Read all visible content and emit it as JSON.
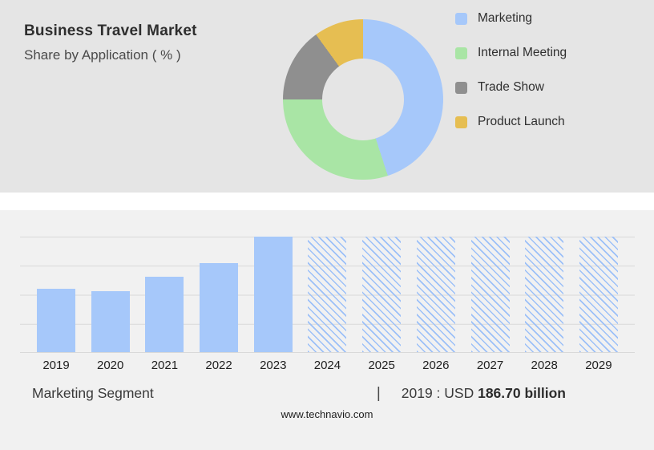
{
  "header": {
    "title": "Business Travel Market",
    "subtitle": "Share by Application ( % )"
  },
  "chart_data": [
    {
      "type": "pie",
      "title": "Business Travel Market - Share by Application (%)",
      "labels": [
        "Marketing",
        "Internal Meeting",
        "Trade Show",
        "Product Launch"
      ],
      "values": [
        45,
        30,
        15,
        10
      ],
      "colors": [
        "#a6c8fa",
        "#a9e5a5",
        "#8f8f8f",
        "#e6be52"
      ],
      "hole": 0.51,
      "legend_position": "right",
      "start_angle_deg": 0
    },
    {
      "type": "bar",
      "title": "Marketing Segment size by year (relative height, % of 2023 bar)",
      "categories": [
        "2019",
        "2020",
        "2021",
        "2022",
        "2023",
        "2024",
        "2025",
        "2026",
        "2027",
        "2028",
        "2029"
      ],
      "values": [
        55,
        53,
        65,
        77,
        100,
        100,
        100,
        100,
        100,
        100,
        100
      ],
      "solid_count": 5,
      "bar_color": "#a6c8fa",
      "forecast_style": "hatched",
      "ylim": [
        0,
        100
      ],
      "grid": true,
      "note": "Bars 2024-2029 are forecast (hatched); heights estimated relative to 2023 = 100"
    }
  ],
  "footer": {
    "segment_label": "Marketing Segment",
    "separator": "|",
    "base_year_text": "2019 : USD",
    "base_year_value": "186.70 billion",
    "website": "www.technavio.com"
  }
}
